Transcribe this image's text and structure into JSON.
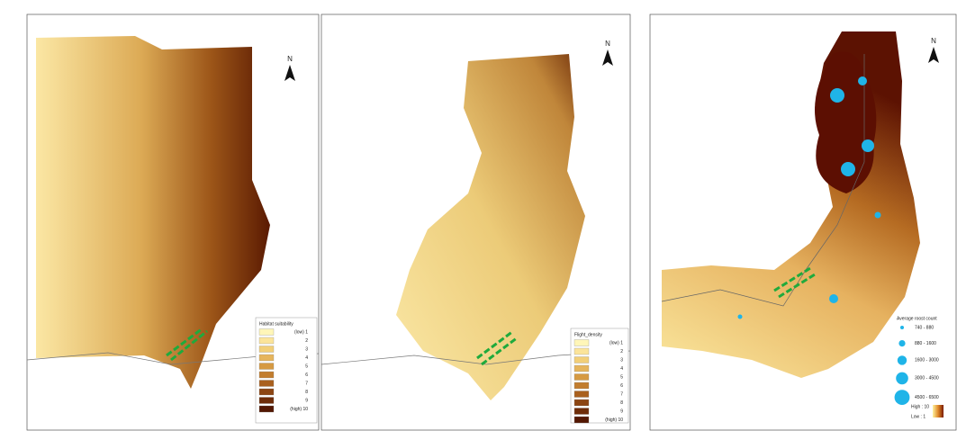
{
  "panels": [
    {
      "north": "N",
      "legend": {
        "title": "Habitat suitability",
        "items": [
          "(low) 1",
          "2",
          "3",
          "4",
          "5",
          "6",
          "7",
          "8",
          "9",
          "(high) 10"
        ],
        "colors": [
          "#fff6b8",
          "#fbe49a",
          "#f2cf78",
          "#e6b55c",
          "#d69a42",
          "#c27d2e",
          "#a9601e",
          "#8c4512",
          "#6e2c08",
          "#531702"
        ]
      }
    },
    {
      "north": "N",
      "legend": {
        "title": "Flight_density",
        "items": [
          "(low) 1",
          "2",
          "3",
          "4",
          "5",
          "6",
          "7",
          "8",
          "9",
          "(high) 10"
        ],
        "colors": [
          "#fff6b8",
          "#fbe49a",
          "#f2cf78",
          "#e6b55c",
          "#d69a42",
          "#c27d2e",
          "#a9601e",
          "#8c4512",
          "#6e2c08",
          "#531702"
        ]
      }
    },
    {
      "north": "N",
      "legend": {
        "title": "Average roost count",
        "items": [
          "740 - 880",
          "880 - 1600",
          "1600 - 3000",
          "3000 - 4500",
          "4500 - 6500"
        ],
        "high": "High : 10",
        "low": "Low : 1",
        "color": "#1fb4e8"
      }
    }
  ]
}
